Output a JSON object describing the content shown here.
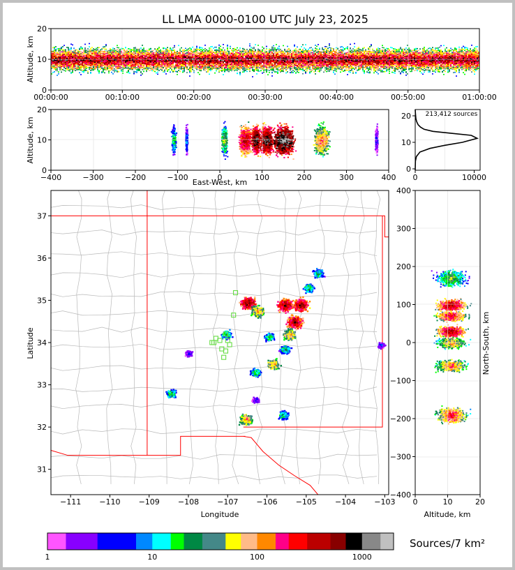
{
  "title": "LL LMA 0000-0100 UTC July 23, 2025",
  "palette": [
    "#ff55ff",
    "#8800ff",
    "#8800ff",
    "#0000ff",
    "#0000ff",
    "#0088ff",
    "#00ffff",
    "#00ff00",
    "#008844",
    "#448888",
    "#ffff00",
    "#ffbb88",
    "#ff8800",
    "#ff0088",
    "#ff0000",
    "#bb0000",
    "#880000",
    "#000000",
    "#888888",
    "#c0c0c0",
    "#ffffff"
  ],
  "chart_data": [
    {
      "id": "time-height",
      "type": "scatter",
      "ylabel": "Altitude, km",
      "ylim": [
        0,
        20
      ],
      "y_ticks": [
        "0",
        "10",
        "20"
      ],
      "x_ticks": [
        "00:00:00",
        "00:10:00",
        "00:20:00",
        "00:30:00",
        "00:40:00",
        "00:50:00",
        "01:00:00"
      ],
      "density_core_altitude_km": 10,
      "grid": true
    },
    {
      "id": "ew-altitude",
      "type": "scatter",
      "xlabel": "East-West, km",
      "ylabel": "Altitude, km",
      "xlim": [
        -400,
        400
      ],
      "ylim": [
        0,
        20
      ],
      "x_ticks": [
        "−400",
        "−300",
        "−200",
        "−100",
        "0",
        "100",
        "200",
        "300",
        "400"
      ],
      "y_ticks": [
        "0",
        "10",
        "20"
      ],
      "clusters_x_km": [
        -110,
        -80,
        10,
        60,
        85,
        110,
        150,
        240,
        370
      ],
      "grid": true
    },
    {
      "id": "altitude-histogram",
      "type": "line",
      "annotation": "213,412 sources",
      "xlim": [
        0,
        11000
      ],
      "ylim": [
        0,
        20
      ],
      "x_ticks": [
        "0",
        "10000"
      ],
      "y_ticks": [
        "0",
        "10",
        "20"
      ],
      "x": [
        0,
        40,
        200,
        800,
        2500,
        5000,
        8000,
        10500,
        9500,
        6000,
        3000,
        1500,
        900,
        500,
        250,
        120,
        50,
        0
      ],
      "y": [
        0,
        3,
        4.5,
        6,
        7.2,
        8.2,
        9.2,
        10.5,
        11.5,
        12.2,
        12.8,
        13.5,
        14.2,
        15,
        16,
        17,
        18.5,
        20
      ]
    },
    {
      "id": "plan-view-map",
      "type": "scatter",
      "xlabel": "Longitude",
      "ylabel": "Latitude",
      "xlim": [
        -111.5,
        -102.9
      ],
      "ylim": [
        30.4,
        37.6
      ],
      "x_ticks": [
        "−111",
        "−110",
        "−109",
        "−108",
        "−107",
        "−106",
        "−105",
        "−104",
        "−103"
      ],
      "y_ticks": [
        "31",
        "32",
        "33",
        "34",
        "35",
        "36",
        "37"
      ],
      "stations": [
        [
          -106.8,
          35.18
        ],
        [
          -106.85,
          34.65
        ],
        [
          -107.05,
          34.2
        ],
        [
          -107.2,
          34.05
        ],
        [
          -107.0,
          34.05
        ],
        [
          -106.95,
          33.95
        ],
        [
          -107.15,
          33.85
        ],
        [
          -107.3,
          34.1
        ],
        [
          -107.4,
          34.0
        ],
        [
          -107.05,
          33.8
        ],
        [
          -107.1,
          33.65
        ],
        [
          -107.35,
          34.0
        ]
      ],
      "storm_cells": [
        {
          "lon": -104.7,
          "lat": 35.65,
          "dens": 2
        },
        {
          "lon": -104.95,
          "lat": 35.3,
          "dens": 2
        },
        {
          "lon": -106.5,
          "lat": 34.95,
          "dens": 4
        },
        {
          "lon": -106.25,
          "lat": 34.75,
          "dens": 3
        },
        {
          "lon": -105.55,
          "lat": 34.9,
          "dens": 4
        },
        {
          "lon": -105.15,
          "lat": 34.9,
          "dens": 4
        },
        {
          "lon": -105.3,
          "lat": 34.5,
          "dens": 4
        },
        {
          "lon": -105.45,
          "lat": 34.2,
          "dens": 3
        },
        {
          "lon": -105.95,
          "lat": 34.15,
          "dens": 2
        },
        {
          "lon": -105.55,
          "lat": 33.85,
          "dens": 2
        },
        {
          "lon": -105.85,
          "lat": 33.5,
          "dens": 3
        },
        {
          "lon": -106.3,
          "lat": 33.3,
          "dens": 2
        },
        {
          "lon": -107.05,
          "lat": 34.2,
          "dens": 2
        },
        {
          "lon": -108.45,
          "lat": 32.8,
          "dens": 2
        },
        {
          "lon": -106.55,
          "lat": 32.2,
          "dens": 3
        },
        {
          "lon": -105.6,
          "lat": 32.3,
          "dens": 2
        },
        {
          "lon": -106.3,
          "lat": 32.65,
          "dens": 1
        },
        {
          "lon": -108.0,
          "lat": 33.75,
          "dens": 1
        },
        {
          "lon": -103.1,
          "lat": 33.95,
          "dens": 1
        }
      ]
    },
    {
      "id": "altitude-ns",
      "type": "scatter",
      "xlabel": "Altitude, km",
      "ylabel": "North-South, km",
      "xlim": [
        0,
        20
      ],
      "ylim": [
        -400,
        400
      ],
      "x_ticks": [
        "0",
        "10",
        "20"
      ],
      "y_ticks": [
        "−400",
        "−300",
        "−200",
        "−100",
        "0",
        "100",
        "200",
        "300",
        "400"
      ],
      "clusters_y_km": [
        170,
        100,
        70,
        30,
        0,
        -60,
        -190
      ],
      "grid": true
    },
    {
      "id": "colorbar",
      "type": "heatmap",
      "label": "Sources/7 km²",
      "scale": "log",
      "range": [
        1,
        2000
      ],
      "tick_labels": [
        "1",
        "10",
        "100",
        "1000"
      ]
    }
  ]
}
